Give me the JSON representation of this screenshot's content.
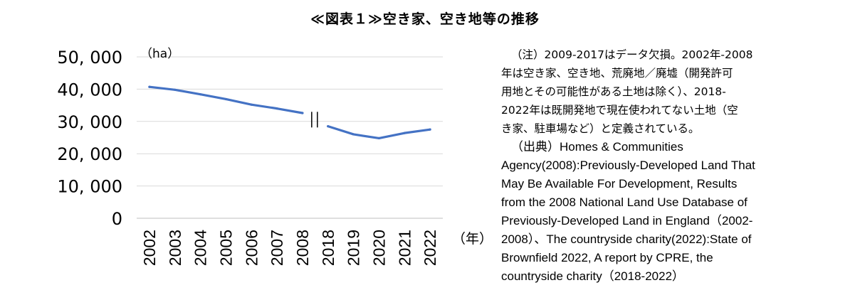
{
  "title": "≪図表１≫空き家、空き地等の推移",
  "chart_data": {
    "type": "line",
    "y_unit_label": "（ha）",
    "x_unit_label": "（年）",
    "categories": [
      "2002",
      "2003",
      "2004",
      "2005",
      "2006",
      "2007",
      "2008",
      "2018",
      "2019",
      "2020",
      "2021",
      "2022"
    ],
    "segments": [
      {
        "categories": [
          "2002",
          "2003",
          "2004",
          "2005",
          "2006",
          "2007",
          "2008"
        ],
        "values": [
          40700,
          39800,
          38400,
          36900,
          35200,
          34000,
          32600
        ]
      },
      {
        "categories": [
          "2018",
          "2019",
          "2020",
          "2021",
          "2022"
        ],
        "values": [
          28500,
          26000,
          24800,
          26400,
          27500
        ]
      }
    ],
    "break_marker": "||",
    "series_color": "#4472C4",
    "ylim": [
      0,
      50000
    ],
    "yticks": [
      0,
      10000,
      20000,
      30000,
      40000,
      50000
    ],
    "ytick_labels": [
      "0",
      "10, 000",
      "20, 000",
      "30, 000",
      "40, 000",
      "50, 000"
    ],
    "grid": true
  },
  "notes": {
    "note_line1": "（注）2009-2017はデータ欠損。2002年-2008",
    "note_line2": "年は空き家、空き地、荒廃地／廃墟（開発許可",
    "note_line3": "用地とその可能性がある土地は除く）、2018-",
    "note_line4": "2022年は既開発地で現在使われてない土地（空",
    "note_line5": "き家、駐車場など）と定義されている。",
    "source_line1": "（出典）Homes & Communities",
    "source_line2": "Agency(2008):Previously-Developed Land That",
    "source_line3": "May Be Available For Development, Results",
    "source_line4": "from the 2008 National Land Use Database of",
    "source_line5": "Previously-Developed Land in England（2002-",
    "source_line6": "2008）、The countryside charity(2022):State of",
    "source_line7": "Brownfield 2022, A report by CPRE, the",
    "source_line8": "countryside charity（2018-2022）"
  }
}
